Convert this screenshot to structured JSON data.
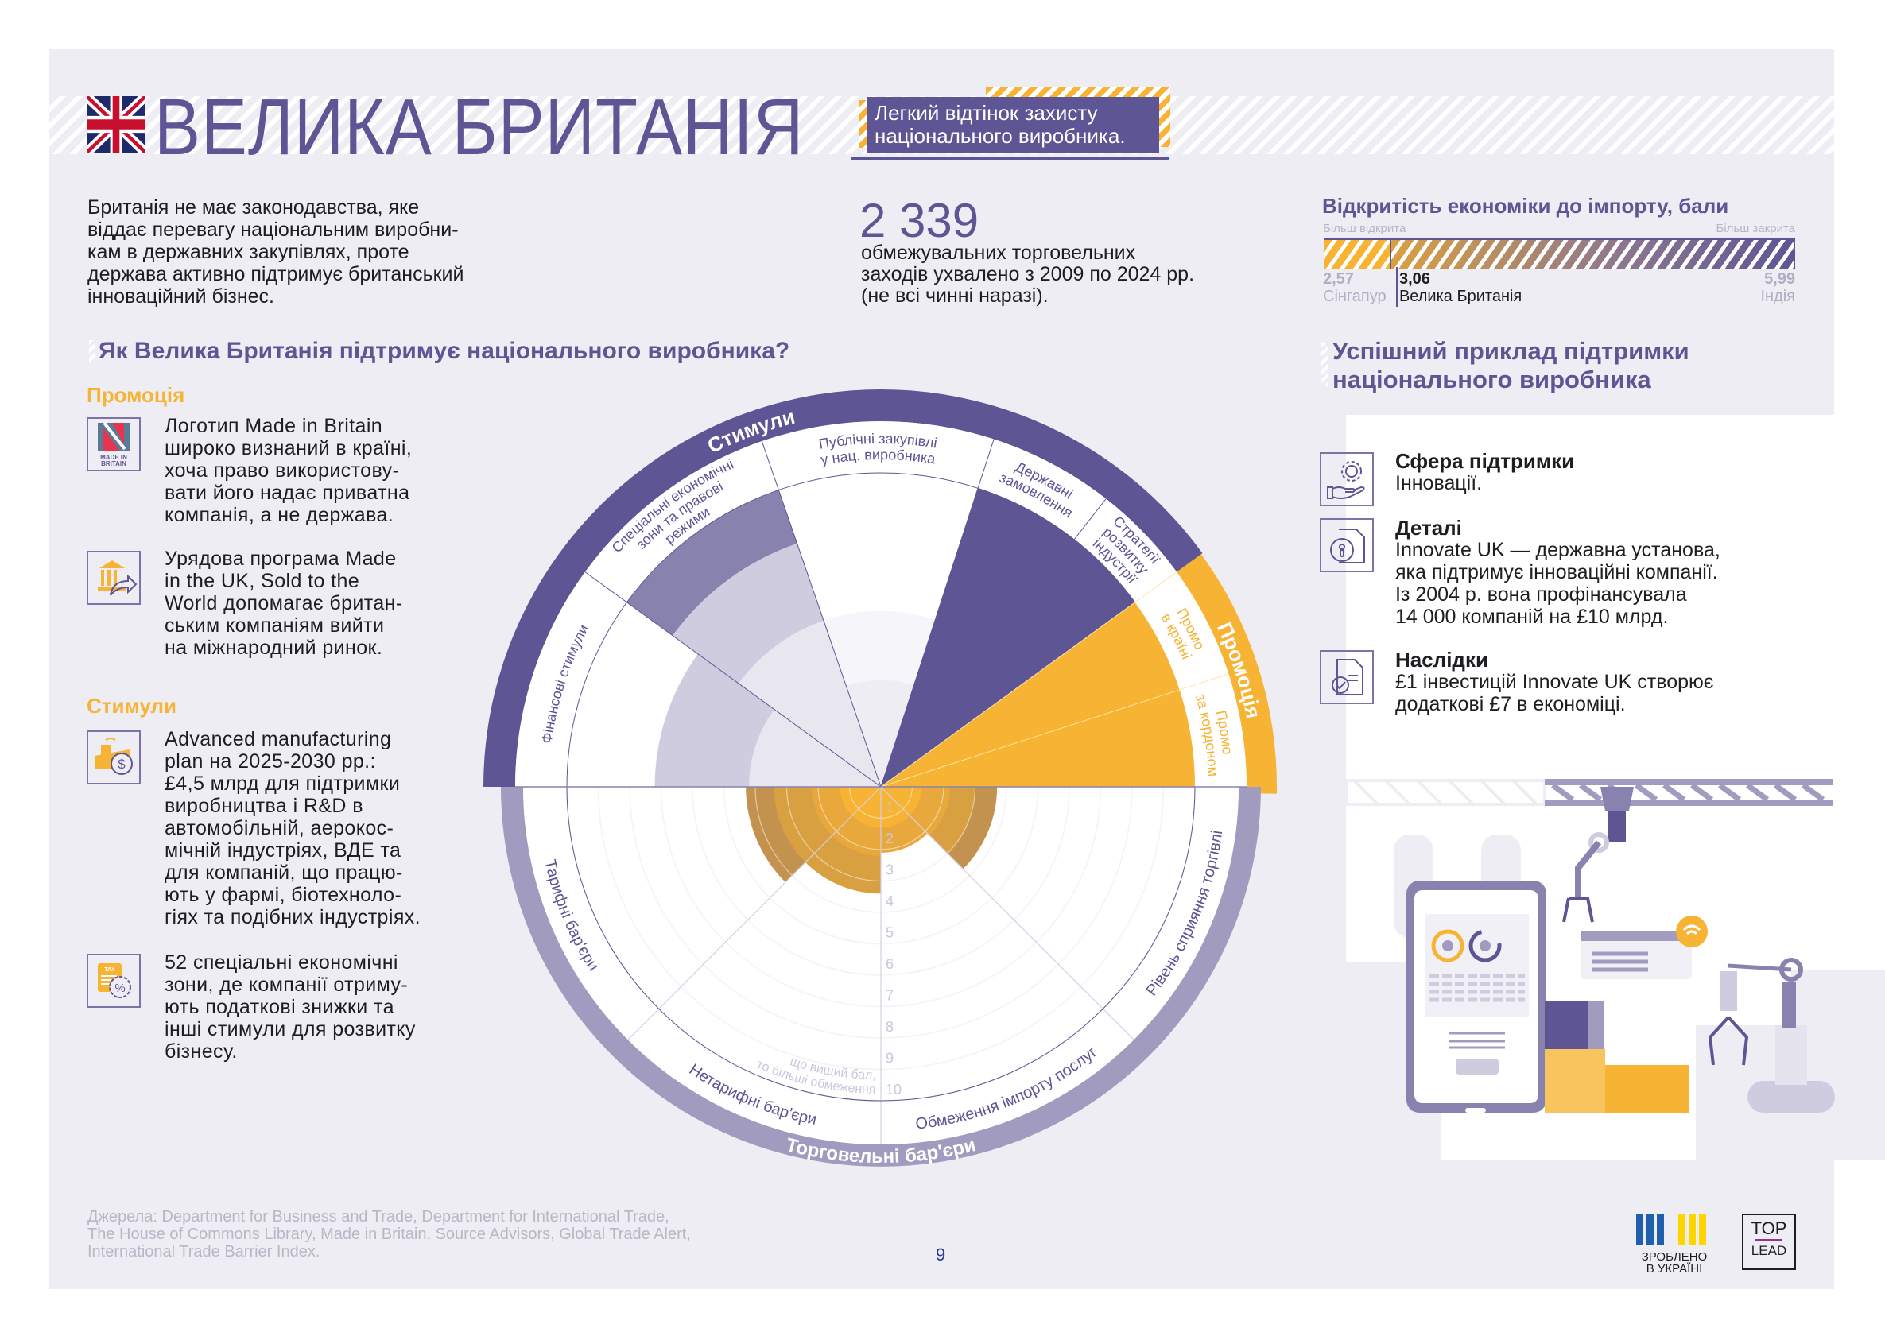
{
  "header": {
    "country": "ВЕЛИКА БРИТАНІЯ",
    "flag_icon": "uk-flag-icon",
    "tagline": "Легкий відтінок захисту\nнаціонального виробника."
  },
  "intro": "Британія не має законодавства, яке\nвіддає перевагу національним виробни-\nкам в державних закупівлях, проте\nдержава активно підтримує британський\nінноваційний бізнес.",
  "stat": {
    "value": "2 339",
    "description": "обмежувальних торговельних\nзаходів ухвалено з 2009 по 2024 рр.\n(не всі чинні наразі)."
  },
  "openness": {
    "title": "Відкритість економіки до імпорту, бали",
    "left_hint": "Більш відкрита",
    "right_hint": "Більш закрита",
    "min": {
      "value": 2.57,
      "value_label": "2,57",
      "country": "Сінгапур"
    },
    "current": {
      "value": 3.06,
      "value_label": "3,06",
      "country": "Велика Британія"
    },
    "max": {
      "value": 5.99,
      "value_label": "5,99",
      "country": "Індія"
    },
    "colors": {
      "open": "#f7b334",
      "closed": "#5e5594"
    }
  },
  "support_section": {
    "heading": "Як Велика Британія підтримує національного виробника?",
    "groups": [
      {
        "title": "Промоція",
        "items": [
          {
            "icon": "made-in-britain-logo-icon",
            "logo_text": "MADE IN BRITAIN",
            "text": "Логотип Made in Britain\nшироко визнаний в країні,\nхоча право використову-\nвати його надає приватна\nкомпанія, а не держава."
          },
          {
            "icon": "government-export-icon",
            "text": "Урядова програма Made\nin the UK, Sold to the\nWorld допомагає британ-\nським компаніям вийти\nна міжнародний ринок."
          }
        ]
      },
      {
        "title": "Стимули",
        "items": [
          {
            "icon": "factory-money-icon",
            "text": "Advanced manufacturing\nplan на 2025-2030 рр.:\n£4,5 млрд для підтримки\nвиробництва і R&D в\nавтомобільній, аерокос-\nмічній індустріях, ВДЕ та\nдля компаній, що працю-\nють у фармі, біотехноло-\nгіях та подібних індустріях."
          },
          {
            "icon": "tax-discount-icon",
            "logo_text": "TAX",
            "text": "52 спеціальні економічні\nзони, де компанії отриму-\nють податкові знижки та\nінші стимули для розвитку\nбізнесу."
          }
        ]
      }
    ]
  },
  "chart_data": {
    "type": "radial",
    "scale_max": 10,
    "scale_ticks": [
      "1",
      "2",
      "3",
      "4",
      "5",
      "6",
      "7",
      "8",
      "9",
      "10"
    ],
    "scale_note": [
      "що вищий бал,",
      "то більші обмеження"
    ],
    "upper_groups": [
      {
        "name": "Стимули",
        "color": "#5e5594"
      },
      {
        "name": "Промоція",
        "color": "#f7b334"
      }
    ],
    "upper_sectors": [
      {
        "group": "Стимули",
        "label_lines": [
          "Фінансові стимули"
        ],
        "label_color": "#5e5594",
        "layers": [
          {
            "value": 7.2,
            "color": "#cfcce0"
          },
          {
            "value": 4.2,
            "color": "#e8e7f0"
          }
        ]
      },
      {
        "group": "Стимули",
        "label_lines": [
          "Спеціальні економічні",
          "зони та правові",
          "режими"
        ],
        "label_color": "#5e5594",
        "layers": [
          {
            "value": 10,
            "color": "#8882ae"
          },
          {
            "value": 8.2,
            "color": "#cfcce0"
          },
          {
            "value": 5.6,
            "color": "#e8e7f0"
          }
        ]
      },
      {
        "group": "Стимули",
        "label_lines": [
          "Публічні закупівлі",
          "у нац. виробника"
        ],
        "label_color": "#5e5594",
        "layers": [
          {
            "value": 5.6,
            "color": "#f6f5f9"
          },
          {
            "value": 3.4,
            "color": "#eeedf3"
          }
        ]
      },
      {
        "group": "Стимули",
        "label_lines": [
          "Державні",
          "замовлення"
        ],
        "label_color": "#5e5594",
        "layers": [
          {
            "value": 10,
            "color": "#5e5594"
          }
        ]
      },
      {
        "group": "Стимули",
        "label_lines": [
          "Стратегії",
          "розвитку",
          "індустрії"
        ],
        "label_color": "#5e5594",
        "layers": [
          {
            "value": 10,
            "color": "#5e5594"
          }
        ]
      },
      {
        "group": "Промоція",
        "label_lines": [
          "Промо",
          "в країні"
        ],
        "label_color": "#f7b334",
        "layers": [
          {
            "value": 10,
            "color": "#f7b334"
          }
        ]
      },
      {
        "group": "Промоція",
        "label_lines": [
          "Промо",
          "за кордоном"
        ],
        "label_color": "#f7b334",
        "layers": [
          {
            "value": 10,
            "color": "#f7b334"
          }
        ]
      }
    ],
    "lower_group": {
      "name": "Торговельні бар'єри",
      "color": "#a09bbf"
    },
    "lower_sectors": [
      {
        "label": "Тарифні бар'єри",
        "layers": [
          {
            "value": 4.3,
            "color": "#c4924f"
          },
          {
            "value": 3.4,
            "color": "#d9a042"
          },
          {
            "value": 2.2,
            "color": "#e8a83c"
          },
          {
            "value": 1.3,
            "color": "#f7b334"
          }
        ]
      },
      {
        "label": "Нетарифні бар'єри",
        "layers": [
          {
            "value": 3.4,
            "color": "#d9a042"
          },
          {
            "value": 2.2,
            "color": "#e8a83c"
          },
          {
            "value": 1.3,
            "color": "#f7b334"
          }
        ]
      },
      {
        "label": "Обмеження імпорту послуг",
        "layers": [
          {
            "value": 2.1,
            "color": "#e8a83c"
          },
          {
            "value": 1.3,
            "color": "#f7b334"
          }
        ]
      },
      {
        "label": "Рівень сприяння торгівлі",
        "layers": [
          {
            "value": 3.7,
            "color": "#c4924f"
          },
          {
            "value": 3.0,
            "color": "#d9a042"
          },
          {
            "value": 2.2,
            "color": "#e8a83c"
          },
          {
            "value": 1.3,
            "color": "#f7b334"
          }
        ]
      }
    ]
  },
  "case_study": {
    "heading": "Успішний приклад підтримки\nнаціонального виробника",
    "items": [
      {
        "icon": "hand-gear-icon",
        "title": "Сфера підтримки",
        "text": "Інновації."
      },
      {
        "icon": "document-lock-icon",
        "title": "Деталі",
        "text": "Innovate UK — державна установа,\nяка підтримує інноваційні компанії.\nІз 2004 р. вона профінансувала\n14 000 компаній на £10 млрд."
      },
      {
        "icon": "document-check-icon",
        "title": "Наслідки",
        "text": "£1 інвестицій Innovate UK створює\nдодаткові £7 в економіці."
      }
    ]
  },
  "footer": {
    "sources": "Джерела: Department for Business and Trade, Department for International Trade,\nThe House of Commons Library, Made in Britain, Source Advisors, Global Trade Alert,\nInternational Trade Barrier Index.",
    "page_number": "9",
    "made_in_ukraine": "ЗРОБЛЕНО\nВ УКРАЇНІ",
    "partner_logo": {
      "top": "TOP",
      "bottom": "LEAD"
    }
  }
}
